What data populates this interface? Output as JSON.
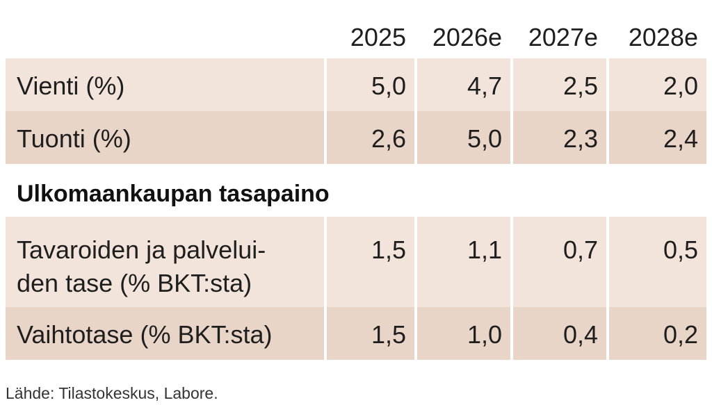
{
  "table": {
    "columns": [
      "2025",
      "2026e",
      "2027e",
      "2028e"
    ],
    "rows_top": [
      {
        "label": "Vienti (%)",
        "values": [
          "5,0",
          "4,7",
          "2,5",
          "2,0"
        ]
      },
      {
        "label": "Tuonti (%)",
        "values": [
          "2,6",
          "5,0",
          "2,3",
          "2,4"
        ]
      }
    ],
    "section_title": "Ulkomaankaupan tasapaino",
    "rows_bottom": [
      {
        "label_line1": "Tavaroiden ja palvelui-",
        "label_line2": "den tase (% BKT:sta)",
        "values": [
          "1,5",
          "1,1",
          "0,7",
          "0,5"
        ]
      },
      {
        "label": "Vaihtotase (% BKT:sta)",
        "values": [
          "1,5",
          "1,0",
          "0,4",
          "0,2"
        ]
      }
    ]
  },
  "source": "Lähde: Tilastokeskus, Labore.",
  "colors": {
    "row_light": "#f2e4da",
    "row_dark": "#e9d5c7",
    "divider": "#ffffff"
  }
}
